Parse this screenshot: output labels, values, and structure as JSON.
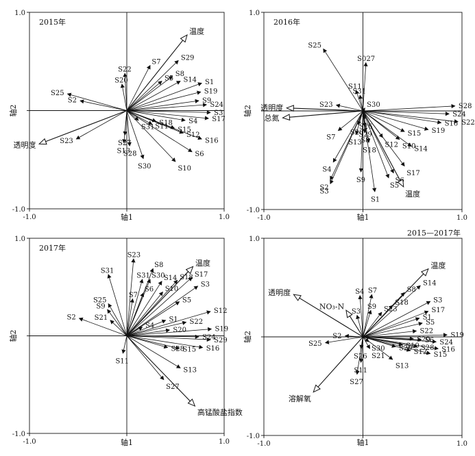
{
  "figure": "rda-biplot-grid",
  "chart_data": [
    {
      "type": "scatter",
      "panel_label": "2015年",
      "xlabel": "轴1",
      "ylabel": "轴2",
      "xlim": [
        -1.0,
        1.0
      ],
      "ylim": [
        -1.0,
        1.0
      ],
      "ticks": {
        "x_min": "-1.0",
        "x_max": "1.0",
        "y_min": "-1.0",
        "y_max": "1.0"
      },
      "env_vectors": [
        {
          "label": "温度",
          "x": 0.62,
          "y": 0.77
        },
        {
          "label": "透明度",
          "x": -0.9,
          "y": -0.34
        }
      ],
      "species_vectors": [
        {
          "label": "S7",
          "x": 0.24,
          "y": 0.46
        },
        {
          "label": "S22",
          "x": -0.02,
          "y": 0.38
        },
        {
          "label": "S20",
          "x": -0.05,
          "y": 0.27
        },
        {
          "label": "S29",
          "x": 0.53,
          "y": 0.51
        },
        {
          "label": "S8",
          "x": 0.47,
          "y": 0.35
        },
        {
          "label": "S5",
          "x": 0.36,
          "y": 0.3
        },
        {
          "label": "S14",
          "x": 0.55,
          "y": 0.3
        },
        {
          "label": "S1",
          "x": 0.77,
          "y": 0.28
        },
        {
          "label": "S19",
          "x": 0.76,
          "y": 0.19
        },
        {
          "label": "S9",
          "x": 0.74,
          "y": 0.1
        },
        {
          "label": "S24",
          "x": 0.82,
          "y": 0.06
        },
        {
          "label": "S3",
          "x": 0.86,
          "y": -0.02
        },
        {
          "label": "S4",
          "x": 0.6,
          "y": -0.1
        },
        {
          "label": "S17",
          "x": 0.84,
          "y": -0.08
        },
        {
          "label": "S16",
          "x": 0.77,
          "y": -0.29
        },
        {
          "label": "S12",
          "x": 0.58,
          "y": -0.23
        },
        {
          "label": "S15",
          "x": 0.49,
          "y": -0.18
        },
        {
          "label": "S18",
          "x": 0.3,
          "y": -0.11
        },
        {
          "label": "S31",
          "x": 0.12,
          "y": -0.1
        },
        {
          "label": "S11",
          "x": 0.26,
          "y": -0.14
        },
        {
          "label": "S6",
          "x": 0.67,
          "y": -0.42
        },
        {
          "label": "S10",
          "x": 0.5,
          "y": -0.52
        },
        {
          "label": "S30",
          "x": 0.17,
          "y": -0.49
        },
        {
          "label": "S28",
          "x": 0.03,
          "y": -0.36
        },
        {
          "label": "S13",
          "x": -0.03,
          "y": -0.33
        },
        {
          "label": "S27",
          "x": -0.02,
          "y": -0.25
        },
        {
          "label": "S25",
          "x": -0.61,
          "y": 0.17
        },
        {
          "label": "S2",
          "x": -0.48,
          "y": 0.1
        },
        {
          "label": "S23",
          "x": -0.52,
          "y": -0.29
        }
      ]
    },
    {
      "type": "scatter",
      "panel_label": "2016年",
      "xlabel": "轴1",
      "ylabel": "轴2",
      "xlim": [
        -1.0,
        1.0
      ],
      "ylim": [
        -1.0,
        1.0
      ],
      "ticks": {
        "x_min": "-1.0",
        "x_max": "1.0",
        "y_min": "-1.0",
        "y_max": "1.0"
      },
      "env_vectors": [
        {
          "label": "透明度",
          "x": -0.77,
          "y": 0.03
        },
        {
          "label": "总氮",
          "x": -0.81,
          "y": -0.07
        },
        {
          "label": "温度",
          "x": 0.41,
          "y": -0.77
        }
      ],
      "species_vectors": [
        {
          "label": "S25",
          "x": -0.4,
          "y": 0.63
        },
        {
          "label": "S027",
          "x": 0.03,
          "y": 0.49
        },
        {
          "label": "S11",
          "x": -0.07,
          "y": 0.21
        },
        {
          "label": "S31",
          "x": -0.03,
          "y": 0.16
        },
        {
          "label": "S23",
          "x": -0.27,
          "y": 0.06
        },
        {
          "label": "S30",
          "x": 0.02,
          "y": 0.03
        },
        {
          "label": "S28",
          "x": 0.93,
          "y": 0.05
        },
        {
          "label": "S24",
          "x": 0.87,
          "y": -0.03
        },
        {
          "label": "S22",
          "x": 0.96,
          "y": -0.11
        },
        {
          "label": "S16",
          "x": 0.79,
          "y": -0.12
        },
        {
          "label": "S19",
          "x": 0.66,
          "y": -0.19
        },
        {
          "label": "S15",
          "x": 0.42,
          "y": -0.21
        },
        {
          "label": "S14",
          "x": 0.49,
          "y": -0.36
        },
        {
          "label": "S10",
          "x": 0.37,
          "y": -0.29
        },
        {
          "label": "S12",
          "x": 0.2,
          "y": -0.27
        },
        {
          "label": "S17",
          "x": 0.42,
          "y": -0.56
        },
        {
          "label": "S6",
          "x": 0.31,
          "y": -0.63
        },
        {
          "label": "S5",
          "x": 0.26,
          "y": -0.68
        },
        {
          "label": "S26",
          "x": 0.02,
          "y": -0.08
        },
        {
          "label": "S29",
          "x": 0.02,
          "y": -0.16
        },
        {
          "label": "S8",
          "x": 0.02,
          "y": -0.22
        },
        {
          "label": "S18",
          "x": 0.06,
          "y": -0.32
        },
        {
          "label": "S7",
          "x": -0.25,
          "y": -0.2
        },
        {
          "label": "S20",
          "x": -0.05,
          "y": -0.14
        },
        {
          "label": "S13",
          "x": -0.07,
          "y": -0.24
        },
        {
          "label": "S9",
          "x": -0.02,
          "y": -0.62
        },
        {
          "label": "S1",
          "x": 0.12,
          "y": -0.82
        },
        {
          "label": "S4",
          "x": -0.3,
          "y": -0.52
        },
        {
          "label": "S2",
          "x": -0.33,
          "y": -0.7
        },
        {
          "label": "S3",
          "x": -0.33,
          "y": -0.74
        }
      ]
    },
    {
      "type": "scatter",
      "panel_label": "2017年",
      "xlabel": "轴1",
      "ylabel": "轴2",
      "xlim": [
        -1.0,
        1.0
      ],
      "ylim": [
        -1.0,
        1.0
      ],
      "ticks": {
        "x_min": "-1.0",
        "x_max": "1.0",
        "y_min": "-1.0",
        "y_max": "1.0"
      },
      "env_vectors": [
        {
          "label": "温度",
          "x": 0.68,
          "y": 0.71
        },
        {
          "label": "高锰酸盐指数",
          "x": 0.7,
          "y": -0.72
        }
      ],
      "species_vectors": [
        {
          "label": "S23",
          "x": 0.07,
          "y": 0.79
        },
        {
          "label": "S31",
          "x": -0.19,
          "y": 0.63
        },
        {
          "label": "S8",
          "x": 0.27,
          "y": 0.69
        },
        {
          "label": "S31",
          "x": 0.16,
          "y": 0.58
        },
        {
          "label": "S30",
          "x": 0.24,
          "y": 0.58
        },
        {
          "label": "S14",
          "x": 0.36,
          "y": 0.56
        },
        {
          "label": "S18",
          "x": 0.52,
          "y": 0.57
        },
        {
          "label": "S17",
          "x": 0.67,
          "y": 0.6
        },
        {
          "label": "S3",
          "x": 0.73,
          "y": 0.51
        },
        {
          "label": "S7",
          "x": 0.06,
          "y": 0.38
        },
        {
          "label": "S6",
          "x": 0.17,
          "y": 0.44
        },
        {
          "label": "S10",
          "x": 0.37,
          "y": 0.45
        },
        {
          "label": "S5",
          "x": 0.54,
          "y": 0.35
        },
        {
          "label": "S25",
          "x": -0.19,
          "y": 0.33
        },
        {
          "label": "S9",
          "x": -0.2,
          "y": 0.27
        },
        {
          "label": "S21",
          "x": -0.17,
          "y": 0.16
        },
        {
          "label": "S2",
          "x": -0.49,
          "y": 0.18
        },
        {
          "label": "S4",
          "x": 0.16,
          "y": 0.09
        },
        {
          "label": "S1",
          "x": 0.4,
          "y": 0.16
        },
        {
          "label": "S22",
          "x": 0.61,
          "y": 0.14
        },
        {
          "label": "S20",
          "x": 0.44,
          "y": 0.06
        },
        {
          "label": "S12",
          "x": 0.86,
          "y": 0.25
        },
        {
          "label": "S19",
          "x": 0.87,
          "y": 0.07
        },
        {
          "label": "S24",
          "x": 0.74,
          "y": -0.01
        },
        {
          "label": "S29",
          "x": 0.86,
          "y": -0.04
        },
        {
          "label": "S16",
          "x": 0.78,
          "y": -0.12
        },
        {
          "label": "S15",
          "x": 0.54,
          "y": -0.13
        },
        {
          "label": "S28",
          "x": 0.42,
          "y": -0.12
        },
        {
          "label": "S13",
          "x": 0.55,
          "y": -0.33
        },
        {
          "label": "S11",
          "x": -0.04,
          "y": -0.18
        },
        {
          "label": "S27",
          "x": 0.38,
          "y": -0.45
        }
      ]
    },
    {
      "type": "scatter",
      "panel_label": "",
      "corner_label": "2015—2017年",
      "xlabel": "轴1",
      "ylabel": "轴2",
      "xlim": [
        -1.0,
        1.0
      ],
      "ylim": [
        -1.0,
        1.0
      ],
      "ticks": {
        "x_min": "-1.0",
        "x_max": "1.0",
        "y_min": "-1.0",
        "y_max": "1.0"
      },
      "env_vectors": [
        {
          "label": "温度",
          "x": 0.66,
          "y": 0.69
        },
        {
          "label": "透明度",
          "x": -0.7,
          "y": 0.43
        },
        {
          "label": "NO₃-N",
          "x": -0.17,
          "y": 0.27
        },
        {
          "label": "溶解氧",
          "x": -0.5,
          "y": -0.56
        }
      ],
      "species_vectors": [
        {
          "label": "S4",
          "x": -0.03,
          "y": 0.42
        },
        {
          "label": "S7",
          "x": 0.09,
          "y": 0.43
        },
        {
          "label": "S3",
          "x": -0.06,
          "y": 0.22
        },
        {
          "label": "S9",
          "x": 0.08,
          "y": 0.27
        },
        {
          "label": "S23",
          "x": 0.19,
          "y": 0.25
        },
        {
          "label": "S18",
          "x": 0.3,
          "y": 0.32
        },
        {
          "label": "S8",
          "x": 0.42,
          "y": 0.45
        },
        {
          "label": "S14",
          "x": 0.58,
          "y": 0.52
        },
        {
          "label": "S3",
          "x": 0.68,
          "y": 0.36
        },
        {
          "label": "S17",
          "x": 0.66,
          "y": 0.26
        },
        {
          "label": "S1",
          "x": 0.57,
          "y": 0.19
        },
        {
          "label": "S5",
          "x": 0.6,
          "y": 0.14
        },
        {
          "label": "S22",
          "x": 0.54,
          "y": 0.06
        },
        {
          "label": "S19",
          "x": 0.85,
          "y": 0.02
        },
        {
          "label": "S20",
          "x": 0.51,
          "y": -0.02
        },
        {
          "label": "S6",
          "x": 0.59,
          "y": -0.03
        },
        {
          "label": "S24",
          "x": 0.74,
          "y": -0.05
        },
        {
          "label": "S10",
          "x": 0.4,
          "y": -0.08
        },
        {
          "label": "S28",
          "x": 0.55,
          "y": -0.1
        },
        {
          "label": "S16",
          "x": 0.76,
          "y": -0.12
        },
        {
          "label": "S12",
          "x": 0.48,
          "y": -0.14
        },
        {
          "label": "S15",
          "x": 0.68,
          "y": -0.17
        },
        {
          "label": "S29",
          "x": 0.33,
          "y": -0.1
        },
        {
          "label": "S13",
          "x": 0.3,
          "y": -0.23
        },
        {
          "label": "S30",
          "x": 0.06,
          "y": -0.05
        },
        {
          "label": "S2",
          "x": -0.18,
          "y": 0.01
        },
        {
          "label": "S25",
          "x": -0.38,
          "y": -0.06
        },
        {
          "label": "S26",
          "x": -0.02,
          "y": -0.12
        },
        {
          "label": "S21",
          "x": 0.07,
          "y": -0.12
        },
        {
          "label": "S11",
          "x": -0.02,
          "y": -0.26
        },
        {
          "label": "S27",
          "x": -0.06,
          "y": -0.38
        }
      ]
    }
  ]
}
